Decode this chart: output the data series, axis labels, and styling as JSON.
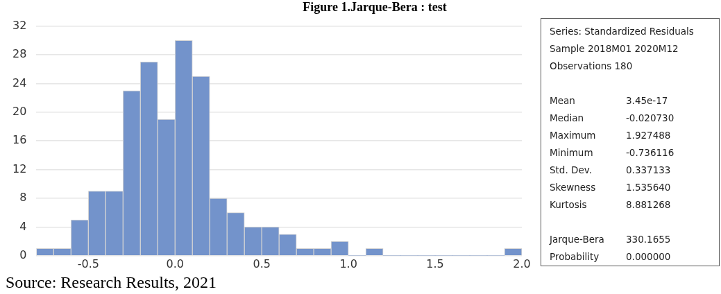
{
  "chart_data": {
    "type": "histogram",
    "title": "Figure 1.Jarque-Bera : test",
    "bins": [
      -0.8,
      -0.7,
      -0.6,
      -0.5,
      -0.4,
      -0.3,
      -0.2,
      -0.1,
      0.0,
      0.1,
      0.2,
      0.3,
      0.4,
      0.5,
      0.6,
      0.7,
      0.8,
      0.9,
      1.0,
      1.1,
      1.2,
      1.3,
      1.4,
      1.5,
      1.6,
      1.7,
      1.8,
      1.9,
      2.0
    ],
    "values": [
      1,
      1,
      5,
      9,
      9,
      23,
      27,
      19,
      30,
      25,
      8,
      6,
      4,
      4,
      3,
      1,
      1,
      2,
      0,
      1,
      0,
      0,
      0,
      0,
      0,
      0,
      0,
      1
    ],
    "color": "#7393cb",
    "xlim": [
      -0.8,
      2.0
    ],
    "xticks": [
      -0.5,
      {
        "value": 0,
        "label": "0.0"
      },
      0.5,
      {
        "value": 1,
        "label": "1.0"
      },
      1.5,
      {
        "value": 2,
        "label": "2.0"
      }
    ],
    "ylim": [
      0,
      32
    ],
    "yticks": [
      0,
      4,
      8,
      12,
      16,
      20,
      24,
      28,
      32
    ],
    "grid": "y",
    "annotations": [
      "Series: Standardized Residuals",
      "Sample 2018M01 2020M12",
      "Observations 180",
      "Mean\t3.45e-17",
      "Median\t-0.020730",
      "Maximum\t1.927488",
      "Minimum\t-0.736116",
      "Std. Dev.\t0.337133",
      "Skewness\t1.535640",
      "Kurtosis\t8.881268",
      "Jarque-Bera\t330.1655",
      "Probability\t0.000000",
      "Source: Research Results, 2021"
    ]
  }
}
